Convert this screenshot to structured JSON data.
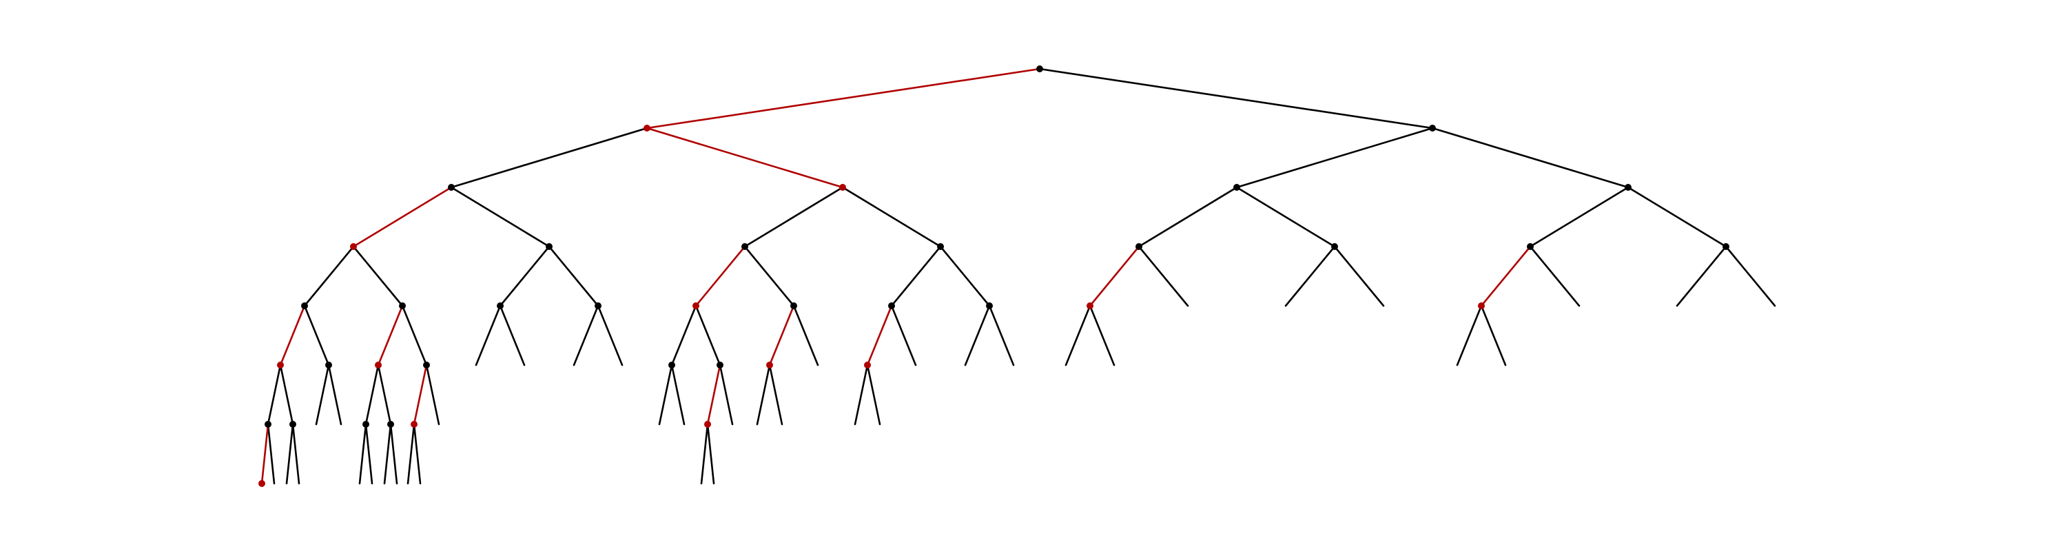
{
  "diagram": {
    "type": "binary-tree",
    "colors": {
      "background": "#ffffff",
      "default": "#000000",
      "highlight": "#b00000"
    },
    "root": {
      "id": "n",
      "highlight": false,
      "children": [
        {
          "id": "n0",
          "highlight": true,
          "children": [
            {
              "id": "n00",
              "highlight": false,
              "children": [
                {
                  "id": "n000",
                  "highlight": true,
                  "children": [
                    {
                      "id": "n0000",
                      "highlight": false,
                      "children": [
                        {
                          "id": "n00000",
                          "highlight": true,
                          "children": [
                            {
                              "id": "n000000",
                              "highlight": false,
                              "children": [
                                {
                                  "id": "n0000000",
                                  "highlight": true,
                                  "dot": true
                                },
                                {
                                  "id": "n0000001",
                                  "highlight": false,
                                  "dot": false
                                }
                              ]
                            },
                            {
                              "id": "n000001",
                              "highlight": false,
                              "children": [
                                {
                                  "id": "n0000010",
                                  "highlight": false,
                                  "dot": false
                                },
                                {
                                  "id": "n0000011",
                                  "highlight": false,
                                  "dot": false
                                }
                              ]
                            }
                          ]
                        },
                        {
                          "id": "n00001",
                          "highlight": false,
                          "children": [
                            {
                              "id": "n000010",
                              "highlight": false,
                              "dot": false
                            },
                            {
                              "id": "n000011",
                              "highlight": false,
                              "dot": false
                            }
                          ]
                        }
                      ]
                    },
                    {
                      "id": "n0001",
                      "highlight": false,
                      "children": [
                        {
                          "id": "n00010",
                          "highlight": true,
                          "children": [
                            {
                              "id": "n000100",
                              "highlight": false,
                              "children": [
                                {
                                  "id": "n0001000",
                                  "highlight": false,
                                  "dot": false
                                },
                                {
                                  "id": "n0001001",
                                  "highlight": false,
                                  "dot": false
                                }
                              ]
                            },
                            {
                              "id": "n000101",
                              "highlight": false,
                              "children": [
                                {
                                  "id": "n0001010",
                                  "highlight": false,
                                  "dot": false
                                },
                                {
                                  "id": "n0001011",
                                  "highlight": false,
                                  "dot": false
                                }
                              ]
                            }
                          ]
                        },
                        {
                          "id": "n00011",
                          "highlight": false,
                          "children": [
                            {
                              "id": "n000110",
                              "highlight": true,
                              "children": [
                                {
                                  "id": "n0001100",
                                  "highlight": false,
                                  "dot": false
                                },
                                {
                                  "id": "n0001101",
                                  "highlight": false,
                                  "dot": false
                                }
                              ]
                            },
                            {
                              "id": "n000111",
                              "highlight": false,
                              "dot": false
                            }
                          ]
                        }
                      ]
                    }
                  ]
                },
                {
                  "id": "n001",
                  "highlight": false,
                  "children": [
                    {
                      "id": "n0010",
                      "highlight": false,
                      "children": [
                        {
                          "id": "n00100",
                          "highlight": false,
                          "dot": false
                        },
                        {
                          "id": "n00101",
                          "highlight": false,
                          "dot": false
                        }
                      ]
                    },
                    {
                      "id": "n0011",
                      "highlight": false,
                      "children": [
                        {
                          "id": "n00110",
                          "highlight": false,
                          "dot": false
                        },
                        {
                          "id": "n00111",
                          "highlight": false,
                          "dot": false
                        }
                      ]
                    }
                  ]
                }
              ]
            },
            {
              "id": "n01",
              "highlight": true,
              "children": [
                {
                  "id": "n010",
                  "highlight": false,
                  "children": [
                    {
                      "id": "n0100",
                      "highlight": true,
                      "children": [
                        {
                          "id": "n01000",
                          "highlight": false,
                          "children": [
                            {
                              "id": "n010000",
                              "highlight": false,
                              "dot": false
                            },
                            {
                              "id": "n010001",
                              "highlight": false,
                              "dot": false
                            }
                          ]
                        },
                        {
                          "id": "n01001",
                          "highlight": false,
                          "children": [
                            {
                              "id": "n010010",
                              "highlight": true,
                              "children": [
                                {
                                  "id": "n0100100",
                                  "highlight": false,
                                  "dot": false
                                },
                                {
                                  "id": "n0100101",
                                  "highlight": false,
                                  "dot": false
                                }
                              ]
                            },
                            {
                              "id": "n010011",
                              "highlight": false,
                              "dot": false
                            }
                          ]
                        }
                      ]
                    },
                    {
                      "id": "n0101",
                      "highlight": false,
                      "children": [
                        {
                          "id": "n01010",
                          "highlight": true,
                          "children": [
                            {
                              "id": "n010100",
                              "highlight": false,
                              "dot": false
                            },
                            {
                              "id": "n010101",
                              "highlight": false,
                              "dot": false
                            }
                          ]
                        },
                        {
                          "id": "n01011",
                          "highlight": false,
                          "dot": false
                        }
                      ]
                    }
                  ]
                },
                {
                  "id": "n011",
                  "highlight": false,
                  "children": [
                    {
                      "id": "n0110",
                      "highlight": false,
                      "children": [
                        {
                          "id": "n01100",
                          "highlight": true,
                          "children": [
                            {
                              "id": "n011000",
                              "highlight": false,
                              "dot": false
                            },
                            {
                              "id": "n011001",
                              "highlight": false,
                              "dot": false
                            }
                          ]
                        },
                        {
                          "id": "n01101",
                          "highlight": false,
                          "dot": false
                        }
                      ]
                    },
                    {
                      "id": "n0111",
                      "highlight": false,
                      "children": [
                        {
                          "id": "n01110",
                          "highlight": false,
                          "dot": false
                        },
                        {
                          "id": "n01111",
                          "highlight": false,
                          "dot": false
                        }
                      ]
                    }
                  ]
                }
              ]
            }
          ]
        },
        {
          "id": "n1",
          "highlight": false,
          "children": [
            {
              "id": "n10",
              "highlight": false,
              "children": [
                {
                  "id": "n100",
                  "highlight": false,
                  "children": [
                    {
                      "id": "n1000",
                      "highlight": true,
                      "children": [
                        {
                          "id": "n10000",
                          "highlight": false,
                          "dot": false
                        },
                        {
                          "id": "n10001",
                          "highlight": false,
                          "dot": false
                        }
                      ]
                    },
                    {
                      "id": "n1001",
                      "highlight": false,
                      "dot": false
                    }
                  ]
                },
                {
                  "id": "n101",
                  "highlight": false,
                  "children": [
                    {
                      "id": "n1010",
                      "highlight": false,
                      "dot": false
                    },
                    {
                      "id": "n1011",
                      "highlight": false,
                      "dot": false
                    }
                  ]
                }
              ]
            },
            {
              "id": "n11",
              "highlight": false,
              "children": [
                {
                  "id": "n110",
                  "highlight": false,
                  "children": [
                    {
                      "id": "n1100",
                      "highlight": true,
                      "children": [
                        {
                          "id": "n11000",
                          "highlight": false,
                          "dot": false
                        },
                        {
                          "id": "n11001",
                          "highlight": false,
                          "dot": false
                        }
                      ]
                    },
                    {
                      "id": "n1101",
                      "highlight": false,
                      "dot": false
                    }
                  ]
                },
                {
                  "id": "n111",
                  "highlight": false,
                  "children": [
                    {
                      "id": "n1110",
                      "highlight": false,
                      "dot": false
                    },
                    {
                      "id": "n1111",
                      "highlight": false,
                      "dot": false
                    }
                  ]
                }
              ]
            }
          ]
        }
      ]
    }
  }
}
